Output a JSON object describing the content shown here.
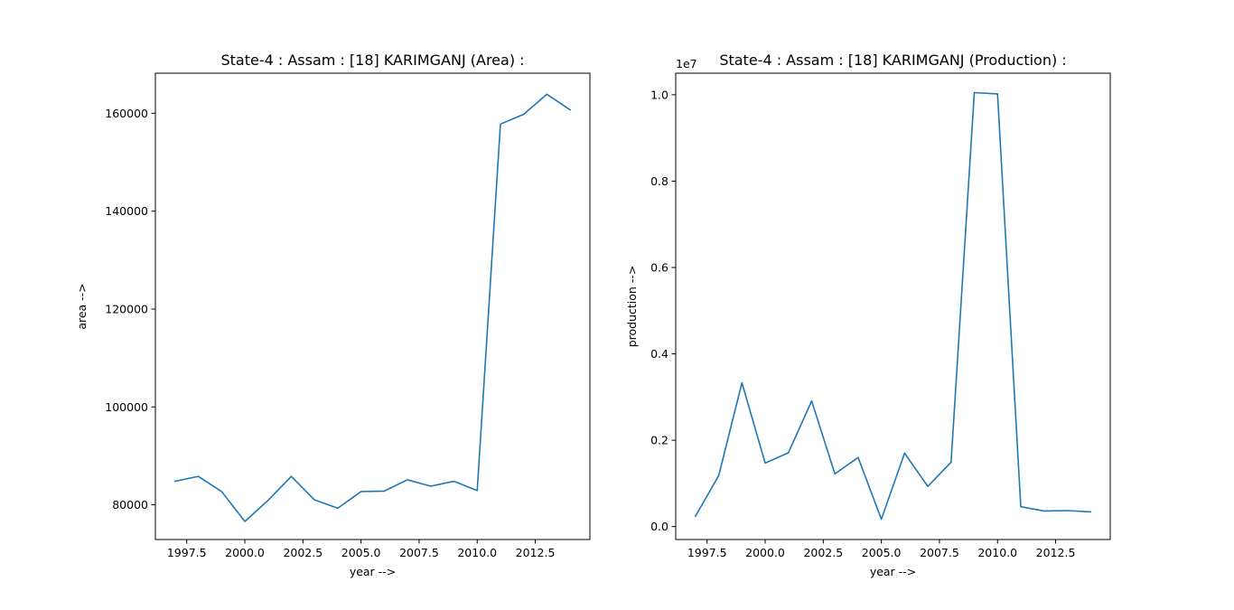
{
  "chart_data": [
    {
      "type": "line",
      "title": "State-4 : Assam : [18] KARIMGANJ (Area) :",
      "xlabel": "year -->",
      "ylabel": "area -->",
      "xlim": [
        1996.15,
        2014.85
      ],
      "ylim": [
        72900,
        168200
      ],
      "xticks": [
        1997.5,
        2000.0,
        2002.5,
        2005.0,
        2007.5,
        2010.0,
        2012.5
      ],
      "xtick_labels": [
        "1997.5",
        "2000.0",
        "2002.5",
        "2005.0",
        "2007.5",
        "2010.0",
        "2012.5"
      ],
      "yticks": [
        80000,
        100000,
        120000,
        140000,
        160000
      ],
      "ytick_labels": [
        "80000",
        "100000",
        "120000",
        "140000",
        "160000"
      ],
      "offset_text": "",
      "grid": false,
      "line_color": "#1f77b4",
      "series": [
        {
          "x": [
            1997,
            1998,
            1999,
            2000,
            2001,
            2002,
            2003,
            2004,
            2005,
            2006,
            2007,
            2008,
            2009,
            2010,
            2011,
            2012,
            2013,
            2014
          ],
          "values": [
            84800,
            85800,
            82700,
            76600,
            80900,
            85800,
            81000,
            79300,
            82700,
            82800,
            85100,
            83800,
            84800,
            82900,
            157800,
            159800,
            163900,
            160700
          ]
        }
      ]
    },
    {
      "type": "line",
      "title": "State-4 : Assam : [18] KARIMGANJ (Production) :",
      "xlabel": "year -->",
      "ylabel": "production -->",
      "xlim": [
        1996.15,
        2014.85
      ],
      "ylim": [
        -0.3,
        10.5
      ],
      "xticks": [
        1997.5,
        2000.0,
        2002.5,
        2005.0,
        2007.5,
        2010.0,
        2012.5
      ],
      "xtick_labels": [
        "1997.5",
        "2000.0",
        "2002.5",
        "2005.0",
        "2007.5",
        "2010.0",
        "2012.5"
      ],
      "yticks": [
        0.0,
        2.0,
        4.0,
        6.0,
        8.0,
        10.0
      ],
      "ytick_labels": [
        "0.0",
        "0.2",
        "0.4",
        "0.6",
        "0.8",
        "1.0"
      ],
      "offset_text": "1e7",
      "grid": false,
      "line_color": "#1f77b4",
      "series": [
        {
          "x": [
            1997,
            1998,
            1999,
            2000,
            2001,
            2002,
            2003,
            2004,
            2005,
            2006,
            2007,
            2008,
            2009,
            2010,
            2011,
            2012,
            2013,
            2014
          ],
          "values": [
            0.24,
            1.18,
            3.33,
            1.47,
            1.71,
            2.91,
            1.22,
            1.6,
            0.17,
            1.7,
            0.93,
            1.49,
            10.05,
            10.02,
            0.46,
            0.36,
            0.37,
            0.34
          ]
        }
      ]
    }
  ]
}
